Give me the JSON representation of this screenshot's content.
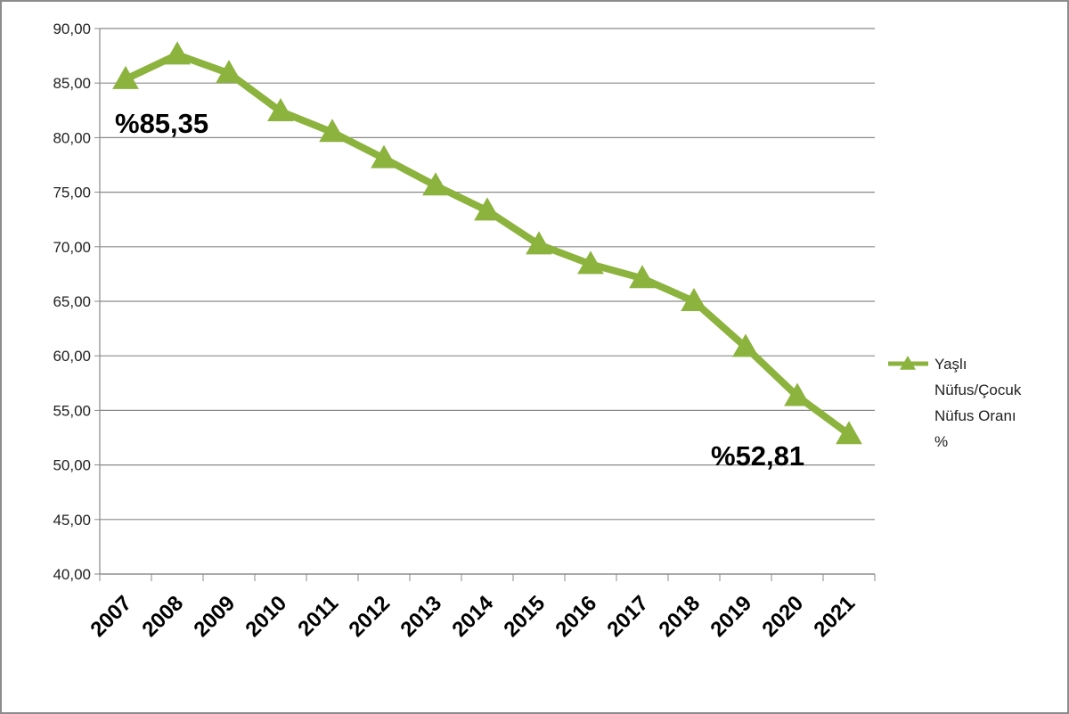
{
  "chart_data": {
    "type": "line",
    "title": "",
    "xlabel": "",
    "ylabel": "",
    "categories": [
      "2007",
      "2008",
      "2009",
      "2010",
      "2011",
      "2012",
      "2013",
      "2014",
      "2015",
      "2016",
      "2017",
      "2018",
      "2019",
      "2020",
      "2021"
    ],
    "series": [
      {
        "name": "Yaşlı Nüfus/Çocuk Nüfus Oranı %",
        "values": [
          85.35,
          87.6,
          85.9,
          82.4,
          80.5,
          78.1,
          75.6,
          73.3,
          70.2,
          68.4,
          67.1,
          65.0,
          60.8,
          56.3,
          52.81
        ],
        "color": "#8cb33e",
        "marker": "triangle"
      }
    ],
    "ylim": [
      40,
      90
    ],
    "ytick_step": 5,
    "ytick_labels": [
      "40,00",
      "45,00",
      "50,00",
      "55,00",
      "60,00",
      "65,00",
      "70,00",
      "75,00",
      "80,00",
      "85,00",
      "90,00"
    ],
    "grid": true,
    "legend_position": "right",
    "legend_lines": [
      "Yaşlı",
      "Nüfus/Çocuk",
      "Nüfus Oranı",
      "%"
    ],
    "annotations": [
      {
        "text": "%85,35",
        "category": "2007"
      },
      {
        "text": "%52,81",
        "category": "2021"
      }
    ]
  }
}
